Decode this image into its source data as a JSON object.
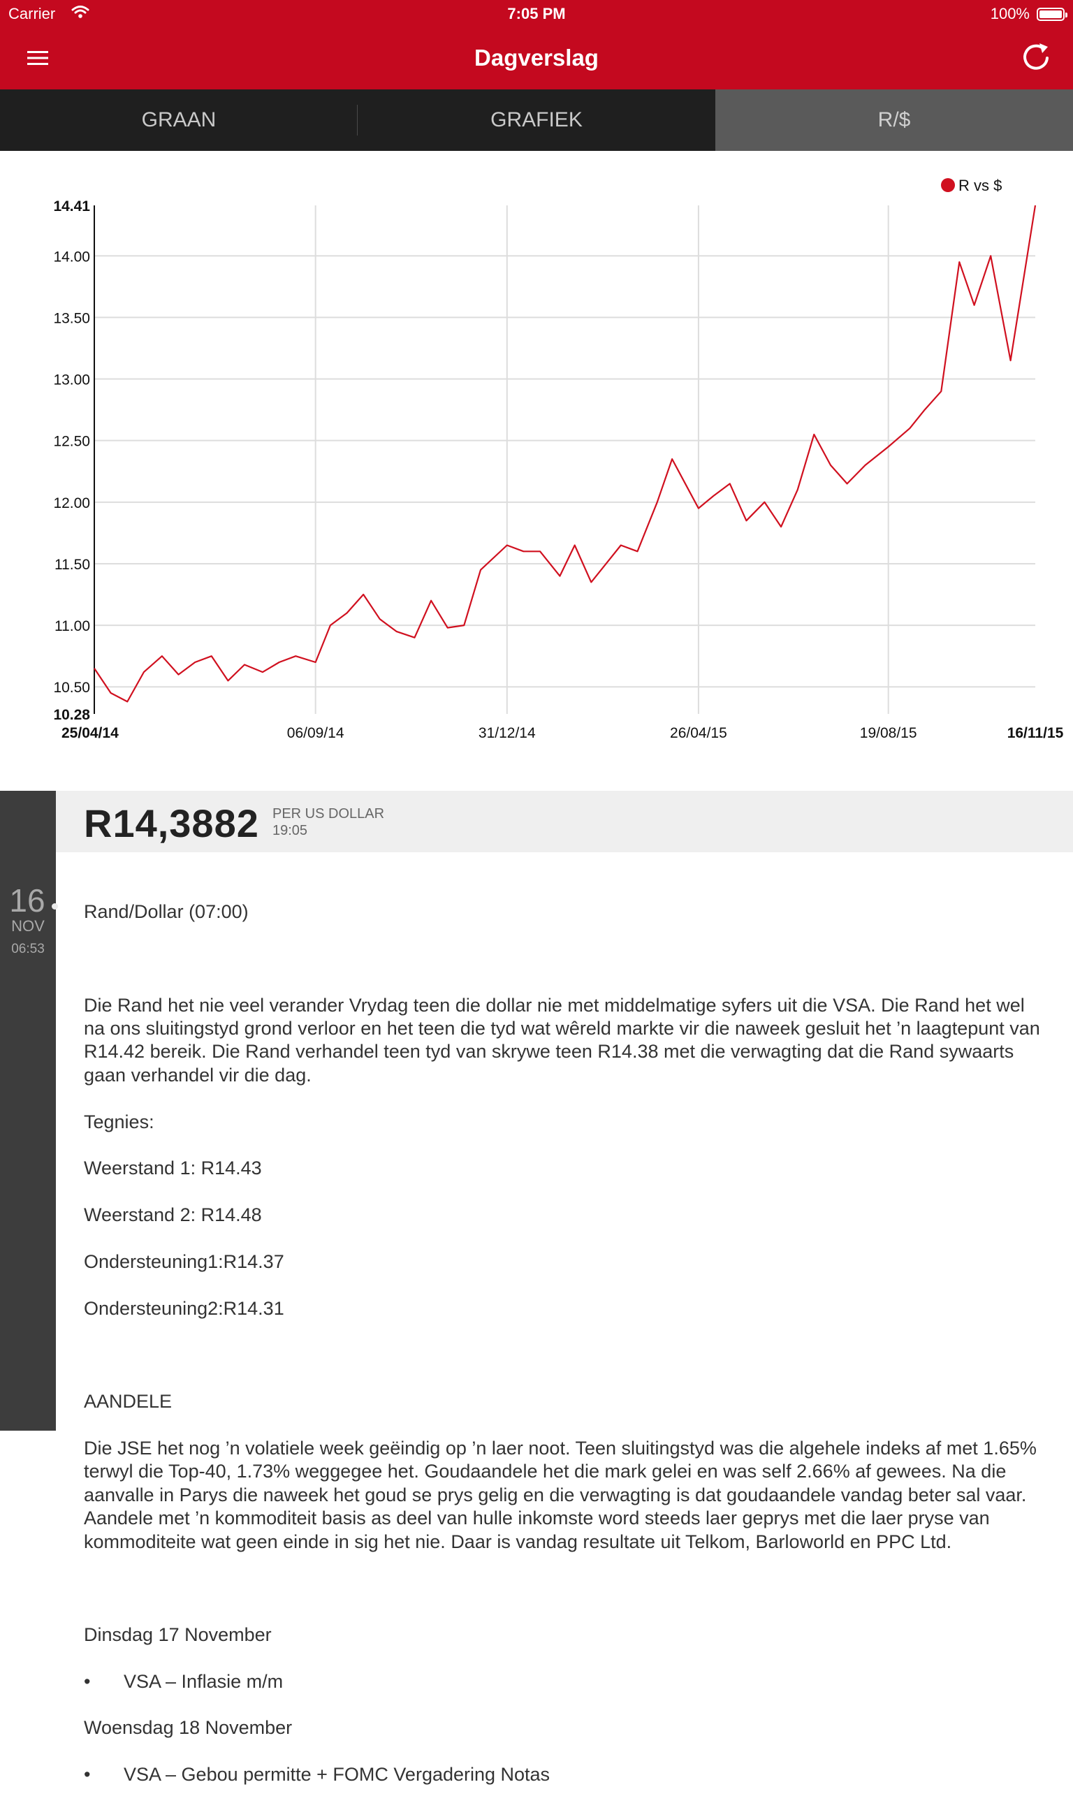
{
  "status_bar": {
    "carrier": "Carrier",
    "time": "7:05 PM",
    "battery": "100%"
  },
  "nav": {
    "title": "Dagverslag"
  },
  "tabs": [
    {
      "label": "GRAAN"
    },
    {
      "label": "GRAFIEK"
    },
    {
      "label": "R/$"
    }
  ],
  "chart_data": {
    "type": "line",
    "legend": "R vs $",
    "legend_position": "top-right",
    "color": "#d0101f",
    "ylim": [
      10.28,
      14.41
    ],
    "yticks": [
      "14.41",
      "14.00",
      "13.50",
      "13.00",
      "12.50",
      "12.00",
      "11.50",
      "11.00",
      "10.50",
      "10.28"
    ],
    "xlim": [
      "25/04/14",
      "16/11/15"
    ],
    "xticks": [
      "25/04/14",
      "06/09/14",
      "31/12/14",
      "26/04/15",
      "19/08/15",
      "16/11/15"
    ],
    "grid": true,
    "series": [
      {
        "x": [
          "25/04/14",
          "05/05/14",
          "15/05/14",
          "25/05/14",
          "05/06/14",
          "15/06/14",
          "25/06/14",
          "05/07/14",
          "15/07/14",
          "25/07/14",
          "05/08/14",
          "15/08/14",
          "25/08/14",
          "06/09/14",
          "15/09/14",
          "25/09/14",
          "05/10/14",
          "15/10/14",
          "25/10/14",
          "05/11/14",
          "15/11/14",
          "25/11/14",
          "05/12/14",
          "15/12/14",
          "31/12/14",
          "10/01/15",
          "20/01/15",
          "01/02/15",
          "10/02/15",
          "20/02/15",
          "01/03/15",
          "10/03/15",
          "20/03/15",
          "01/04/15",
          "10/04/15",
          "20/04/15",
          "26/04/15",
          "05/05/15",
          "15/05/15",
          "25/05/15",
          "05/06/15",
          "15/06/15",
          "25/06/15",
          "05/07/15",
          "15/07/15",
          "25/07/15",
          "05/08/15",
          "19/08/15",
          "01/09/15",
          "10/09/15",
          "20/09/15",
          "01/10/15",
          "10/10/15",
          "20/10/15",
          "01/11/15",
          "16/11/15"
        ],
        "y": [
          10.65,
          10.45,
          10.38,
          10.62,
          10.75,
          10.6,
          10.7,
          10.75,
          10.55,
          10.68,
          10.62,
          10.7,
          10.75,
          10.7,
          11.0,
          11.1,
          11.25,
          11.05,
          10.95,
          10.9,
          11.2,
          10.98,
          11.0,
          11.45,
          11.65,
          11.6,
          11.6,
          11.4,
          11.65,
          11.35,
          11.5,
          11.65,
          11.6,
          12.0,
          12.35,
          12.1,
          11.95,
          12.05,
          12.15,
          11.85,
          12.0,
          11.8,
          12.1,
          12.55,
          12.3,
          12.15,
          12.3,
          12.45,
          12.6,
          12.75,
          12.9,
          13.95,
          13.6,
          14.0,
          13.15,
          14.41
        ]
      }
    ]
  },
  "rate": {
    "value": "R14,3882",
    "label": "PER US DOLLAR",
    "time": "19:05"
  },
  "entry_date": {
    "day": "16",
    "month": "NOV",
    "time": "06:53"
  },
  "article": {
    "heading": "Rand/Dollar (07:00)",
    "p1": "Die Rand het nie veel verander Vrydag teen die dollar nie met middelmatige syfers uit die VSA. Die Rand het wel na ons sluitingstyd grond verloor en het teen die tyd wat wêreld markte vir die naweek gesluit het ’n laagtepunt van R14.42 bereik. Die Rand verhandel teen tyd van skrywe teen R14.38 met die verwagting dat die Rand sywaarts gaan verhandel vir die dag.",
    "tech_title": "Tegnies:",
    "w1": "Weerstand 1: R14.43",
    "w2": "Weerstand 2: R14.48",
    "o1": "Ondersteuning1:R14.37",
    "o2": "Ondersteuning2:R14.31",
    "shares_title": "AANDELE",
    "p2": "Die JSE het nog ’n volatiele week geëindig op ’n laer noot. Teen sluitingstyd was die algehele indeks af met 1.65% terwyl die Top-40, 1.73% weggegee het. Goudaandele het die mark gelei en was self 2.66% af gewees. Na die aanvalle in Parys die naweek het goud se prys gelig en die verwagting is dat goudaandele vandag beter sal vaar. Aandele met ’n kommoditeit basis as deel van hulle inkomste word steeds laer geprys met die laer pryse van kommoditeite wat geen einde in sig het nie. Daar is vandag resultate uit Telkom, Barloworld en PPC Ltd.",
    "day1": "Dinsdag 17 November",
    "day1_item": "VSA – Inflasie m/m",
    "day2": "Woensdag 18 November",
    "day2_item": "VSA – Gebou permitte + FOMC Vergadering Notas"
  }
}
